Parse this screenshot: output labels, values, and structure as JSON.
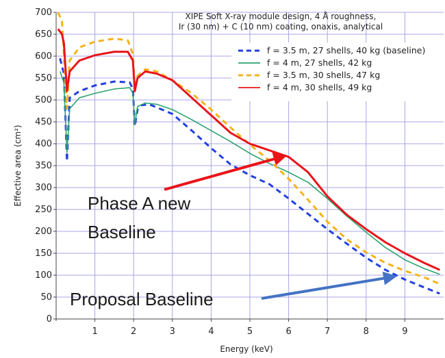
{
  "chart_data": {
    "type": "line",
    "title_lines": [
      "XIPE Soft X-ray module design, 4 Å roughness,",
      "Ir (30 nm) + C (10 nm) coating, onaxis, analytical"
    ],
    "xlabel": "Energy (keV)",
    "ylabel": "Effective area (cm²)",
    "xlim": [
      0,
      10
    ],
    "ylim": [
      0,
      700
    ],
    "x_ticks": [
      1,
      2,
      3,
      4,
      5,
      6,
      7,
      8,
      9
    ],
    "y_ticks": [
      0,
      50,
      100,
      150,
      200,
      250,
      300,
      350,
      400,
      450,
      500,
      550,
      600,
      650,
      700
    ],
    "grid": true,
    "legend_position": "top-right",
    "series": [
      {
        "name": "f = 3.5 m, 27 shells, 40 kg (baseline)",
        "color": "#1f3fe0",
        "style": "dashed",
        "points": [
          [
            0.1,
            595
          ],
          [
            0.2,
            560
          ],
          [
            0.28,
            360
          ],
          [
            0.35,
            505
          ],
          [
            0.6,
            520
          ],
          [
            1,
            533
          ],
          [
            1.5,
            542
          ],
          [
            1.9,
            540
          ],
          [
            1.98,
            525
          ],
          [
            2.03,
            440
          ],
          [
            2.1,
            478
          ],
          [
            2.2,
            488
          ],
          [
            2.4,
            490
          ],
          [
            2.6,
            483
          ],
          [
            3,
            468
          ],
          [
            3.5,
            430
          ],
          [
            4,
            390
          ],
          [
            4.5,
            353
          ],
          [
            5,
            328
          ],
          [
            5.5,
            308
          ],
          [
            6,
            275
          ],
          [
            6.5,
            240
          ],
          [
            7,
            205
          ],
          [
            7.5,
            172
          ],
          [
            8,
            140
          ],
          [
            8.5,
            112
          ],
          [
            9,
            90
          ],
          [
            9.5,
            72
          ],
          [
            9.9,
            58
          ]
        ]
      },
      {
        "name": "f = 4 m, 27 shells, 42 kg",
        "color": "#2aa36e",
        "style": "solid",
        "points": [
          [
            0.1,
            565
          ],
          [
            0.2,
            540
          ],
          [
            0.28,
            380
          ],
          [
            0.35,
            480
          ],
          [
            0.6,
            505
          ],
          [
            1,
            515
          ],
          [
            1.5,
            525
          ],
          [
            1.9,
            528
          ],
          [
            1.98,
            515
          ],
          [
            2.03,
            445
          ],
          [
            2.1,
            485
          ],
          [
            2.3,
            493
          ],
          [
            2.6,
            490
          ],
          [
            3,
            478
          ],
          [
            3.5,
            455
          ],
          [
            4,
            430
          ],
          [
            4.5,
            405
          ],
          [
            5,
            378
          ],
          [
            5.5,
            355
          ],
          [
            6,
            335
          ],
          [
            6.5,
            312
          ],
          [
            7,
            275
          ],
          [
            7.5,
            235
          ],
          [
            8,
            198
          ],
          [
            8.5,
            163
          ],
          [
            9,
            135
          ],
          [
            9.5,
            115
          ],
          [
            9.9,
            102
          ]
        ]
      },
      {
        "name": "f = 3.5 m, 30 shells, 47 kg",
        "color": "#f5b21a",
        "style": "dashed",
        "points": [
          [
            0.05,
            700
          ],
          [
            0.15,
            680
          ],
          [
            0.28,
            480
          ],
          [
            0.35,
            590
          ],
          [
            0.6,
            620
          ],
          [
            1,
            633
          ],
          [
            1.5,
            640
          ],
          [
            1.85,
            636
          ],
          [
            1.98,
            605
          ],
          [
            2.03,
            520
          ],
          [
            2.1,
            555
          ],
          [
            2.3,
            570
          ],
          [
            2.6,
            565
          ],
          [
            3,
            545
          ],
          [
            3.5,
            515
          ],
          [
            4,
            478
          ],
          [
            4.5,
            437
          ],
          [
            5,
            398
          ],
          [
            5.5,
            362
          ],
          [
            6,
            320
          ],
          [
            6.5,
            272
          ],
          [
            7,
            222
          ],
          [
            7.5,
            182
          ],
          [
            8,
            152
          ],
          [
            8.5,
            128
          ],
          [
            9,
            110
          ],
          [
            9.5,
            95
          ],
          [
            9.9,
            80
          ]
        ]
      },
      {
        "name": "f = 4 m, 30 shells, 49 kg",
        "color": "#e8141a",
        "style": "solid",
        "points": [
          [
            0.05,
            662
          ],
          [
            0.15,
            650
          ],
          [
            0.2,
            630
          ],
          [
            0.28,
            520
          ],
          [
            0.35,
            565
          ],
          [
            0.6,
            590
          ],
          [
            1,
            602
          ],
          [
            1.5,
            610
          ],
          [
            1.85,
            610
          ],
          [
            1.98,
            590
          ],
          [
            2.03,
            520
          ],
          [
            2.1,
            550
          ],
          [
            2.3,
            565
          ],
          [
            2.6,
            560
          ],
          [
            3,
            545
          ],
          [
            3.5,
            505
          ],
          [
            4,
            465
          ],
          [
            4.5,
            425
          ],
          [
            5,
            400
          ],
          [
            5.5,
            385
          ],
          [
            6,
            370
          ],
          [
            6.5,
            335
          ],
          [
            7,
            280
          ],
          [
            7.5,
            238
          ],
          [
            8,
            205
          ],
          [
            8.5,
            175
          ],
          [
            9,
            150
          ],
          [
            9.5,
            128
          ],
          [
            9.9,
            112
          ]
        ]
      }
    ],
    "annotations": [
      {
        "lines": [
          "Phase A new",
          "Baseline"
        ],
        "color": "#e8141a",
        "arrow_to": [
          6.0,
          375
        ]
      },
      {
        "lines": [
          "Proposal Baseline"
        ],
        "color": "#4472c4",
        "arrow_to": [
          8.8,
          100
        ]
      }
    ]
  }
}
